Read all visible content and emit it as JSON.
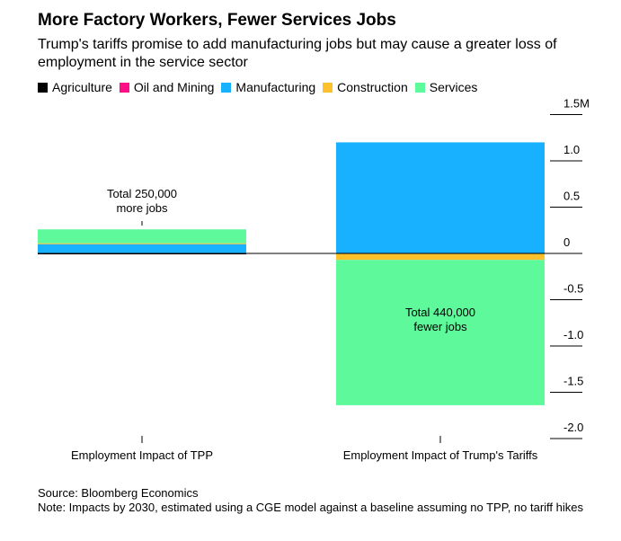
{
  "title": "More Factory Workers, Fewer Services Jobs",
  "subtitle": "Trump's tariffs promise to add manufacturing jobs but may cause a greater loss of employment in the service sector",
  "source": "Source: Bloomberg Economics",
  "note": "Note: Impacts by 2030, estimated using a CGE model against a baseline assuming no TPP, no tariff hikes",
  "chart_data": {
    "type": "bar",
    "stacked": true,
    "categories": [
      "Employment Impact of TPP",
      "Employment Impact of Trump's Tariffs"
    ],
    "series": [
      {
        "name": "Agriculture",
        "color": "#000000",
        "values": [
          -0.01,
          0
        ]
      },
      {
        "name": "Oil and Mining",
        "color": "#ff0f87",
        "values": [
          0,
          0
        ]
      },
      {
        "name": "Manufacturing",
        "color": "#17b1ff",
        "values": [
          0.1,
          1.2
        ]
      },
      {
        "name": "Construction",
        "color": "#ffc02e",
        "values": [
          0.01,
          -0.07
        ]
      },
      {
        "name": "Services",
        "color": "#5ef99b",
        "values": [
          0.15,
          -1.57
        ]
      }
    ],
    "annotations": [
      {
        "category": 0,
        "lines": [
          "Total 250,000",
          "more jobs"
        ]
      },
      {
        "category": 1,
        "lines": [
          "Total 440,000",
          "fewer jobs"
        ]
      }
    ],
    "yticks": [
      1.5,
      1.0,
      0.5,
      0,
      -0.5,
      -1.0,
      -1.5,
      -2.0
    ],
    "ytick_labels": [
      "1.5M",
      "1.0",
      "0.5",
      "0",
      "-0.5",
      "-1.0",
      "-1.5",
      "-2.0"
    ],
    "ylim": [
      -2.0,
      1.5
    ],
    "yaxis_position": "right"
  }
}
